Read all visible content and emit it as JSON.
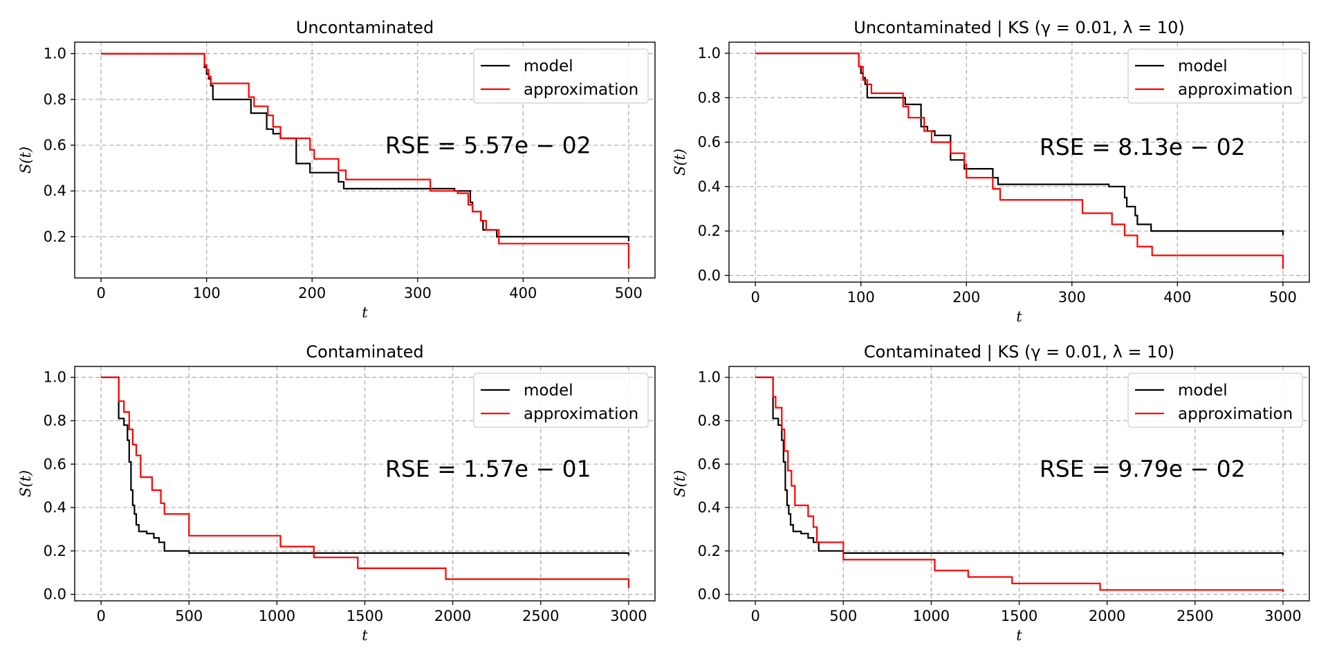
{
  "chart_data": [
    {
      "type": "line",
      "title": "Uncontaminated",
      "xlabel": "t",
      "ylabel": "S(t)",
      "xlim": [
        -25,
        525
      ],
      "ylim": [
        0.02,
        1.05
      ],
      "xticks": [
        0,
        100,
        200,
        300,
        400,
        500
      ],
      "yticks": [
        0.2,
        0.4,
        0.6,
        0.8,
        1.0
      ],
      "annotation": "RSE = 5.57e − 02",
      "legend": "top-right",
      "grid": true,
      "series": [
        {
          "name": "model",
          "color": "#000000",
          "x": [
            0,
            98,
            100,
            102,
            104,
            106,
            140,
            142,
            157,
            163,
            170,
            185,
            198,
            200,
            225,
            230,
            310,
            335,
            350,
            352,
            360,
            362,
            375,
            500,
            500
          ],
          "y": [
            1.0,
            0.94,
            0.91,
            0.89,
            0.86,
            0.8,
            0.8,
            0.74,
            0.67,
            0.65,
            0.63,
            0.52,
            0.48,
            0.48,
            0.44,
            0.41,
            0.41,
            0.4,
            0.35,
            0.31,
            0.27,
            0.23,
            0.2,
            0.2,
            0.18
          ]
        },
        {
          "name": "approximation",
          "color": "#ff0000",
          "x": [
            0,
            98,
            100,
            102,
            104,
            108,
            140,
            145,
            158,
            163,
            170,
            198,
            202,
            225,
            232,
            310,
            312,
            338,
            348,
            352,
            360,
            365,
            377,
            500,
            500
          ],
          "y": [
            1.0,
            0.95,
            0.93,
            0.9,
            0.87,
            0.87,
            0.81,
            0.77,
            0.73,
            0.68,
            0.63,
            0.58,
            0.54,
            0.49,
            0.45,
            0.45,
            0.4,
            0.39,
            0.34,
            0.31,
            0.27,
            0.23,
            0.17,
            0.17,
            0.06
          ]
        }
      ]
    },
    {
      "type": "line",
      "title": "Uncontaminated | KS (γ = 0.01, λ = 10)",
      "xlabel": "t",
      "ylabel": "S(t)",
      "xlim": [
        -25,
        525
      ],
      "ylim": [
        -0.03,
        1.05
      ],
      "xticks": [
        0,
        100,
        200,
        300,
        400,
        500
      ],
      "yticks": [
        0.0,
        0.2,
        0.4,
        0.6,
        0.8,
        1.0
      ],
      "annotation": "RSE = 8.13e − 02",
      "legend": "top-right",
      "grid": true,
      "series": [
        {
          "name": "model",
          "color": "#000000",
          "x": [
            0,
            98,
            100,
            102,
            104,
            106,
            140,
            142,
            157,
            163,
            170,
            185,
            198,
            200,
            225,
            230,
            310,
            335,
            350,
            352,
            360,
            362,
            375,
            500,
            500
          ],
          "y": [
            1.0,
            0.94,
            0.91,
            0.89,
            0.86,
            0.8,
            0.8,
            0.77,
            0.67,
            0.65,
            0.63,
            0.52,
            0.48,
            0.48,
            0.44,
            0.41,
            0.41,
            0.4,
            0.35,
            0.31,
            0.27,
            0.23,
            0.2,
            0.2,
            0.18
          ]
        },
        {
          "name": "approximation",
          "color": "#ff0000",
          "x": [
            0,
            98,
            102,
            106,
            110,
            140,
            145,
            160,
            167,
            185,
            198,
            200,
            225,
            232,
            310,
            338,
            350,
            362,
            376,
            500,
            500
          ],
          "y": [
            1.0,
            0.94,
            0.88,
            0.86,
            0.82,
            0.76,
            0.71,
            0.65,
            0.6,
            0.55,
            0.5,
            0.44,
            0.39,
            0.34,
            0.28,
            0.23,
            0.18,
            0.13,
            0.09,
            0.09,
            0.03
          ]
        }
      ]
    },
    {
      "type": "line",
      "title": "Contaminated",
      "xlabel": "t",
      "ylabel": "S(t)",
      "xlim": [
        -150,
        3150
      ],
      "ylim": [
        -0.03,
        1.05
      ],
      "xticks": [
        0,
        500,
        1000,
        1500,
        2000,
        2500,
        3000
      ],
      "yticks": [
        0.0,
        0.2,
        0.4,
        0.6,
        0.8,
        1.0
      ],
      "annotation": "RSE = 1.57e − 01",
      "legend": "top-right",
      "grid": true,
      "series": [
        {
          "name": "model",
          "color": "#000000",
          "x": [
            0,
            100,
            130,
            150,
            160,
            170,
            180,
            190,
            200,
            215,
            230,
            260,
            300,
            330,
            360,
            500,
            3000,
            3000
          ],
          "y": [
            1.0,
            0.81,
            0.78,
            0.71,
            0.61,
            0.48,
            0.41,
            0.37,
            0.32,
            0.29,
            0.29,
            0.28,
            0.26,
            0.24,
            0.2,
            0.19,
            0.19,
            0.18
          ]
        },
        {
          "name": "approximation",
          "color": "#ff0000",
          "x": [
            0,
            100,
            130,
            160,
            180,
            200,
            225,
            290,
            340,
            360,
            500,
            1020,
            1210,
            1460,
            1960,
            3000,
            3000
          ],
          "y": [
            1.0,
            0.89,
            0.84,
            0.76,
            0.69,
            0.64,
            0.54,
            0.48,
            0.42,
            0.37,
            0.27,
            0.22,
            0.17,
            0.12,
            0.07,
            0.07,
            0.03
          ]
        }
      ]
    },
    {
      "type": "line",
      "title": "Contaminated | KS (γ = 0.01, λ = 10)",
      "xlabel": "t",
      "ylabel": "S(t)",
      "xlim": [
        -150,
        3150
      ],
      "ylim": [
        -0.03,
        1.05
      ],
      "xticks": [
        0,
        500,
        1000,
        1500,
        2000,
        2500,
        3000
      ],
      "yticks": [
        0.0,
        0.2,
        0.4,
        0.6,
        0.8,
        1.0
      ],
      "annotation": "RSE = 9.79e − 02",
      "legend": "top-right",
      "grid": true,
      "series": [
        {
          "name": "model",
          "color": "#000000",
          "x": [
            0,
            100,
            130,
            150,
            160,
            170,
            180,
            190,
            200,
            215,
            230,
            260,
            300,
            330,
            360,
            500,
            3000,
            3000
          ],
          "y": [
            1.0,
            0.81,
            0.78,
            0.71,
            0.61,
            0.48,
            0.41,
            0.37,
            0.32,
            0.29,
            0.29,
            0.28,
            0.26,
            0.24,
            0.2,
            0.19,
            0.19,
            0.18
          ]
        },
        {
          "name": "approximation",
          "color": "#ff0000",
          "x": [
            0,
            100,
            115,
            150,
            165,
            185,
            205,
            225,
            300,
            330,
            350,
            500,
            1020,
            1210,
            1460,
            1960,
            3000,
            3000
          ],
          "y": [
            1.0,
            0.91,
            0.86,
            0.76,
            0.66,
            0.57,
            0.5,
            0.41,
            0.36,
            0.31,
            0.24,
            0.16,
            0.11,
            0.08,
            0.05,
            0.02,
            0.02,
            0.01
          ]
        }
      ]
    }
  ]
}
